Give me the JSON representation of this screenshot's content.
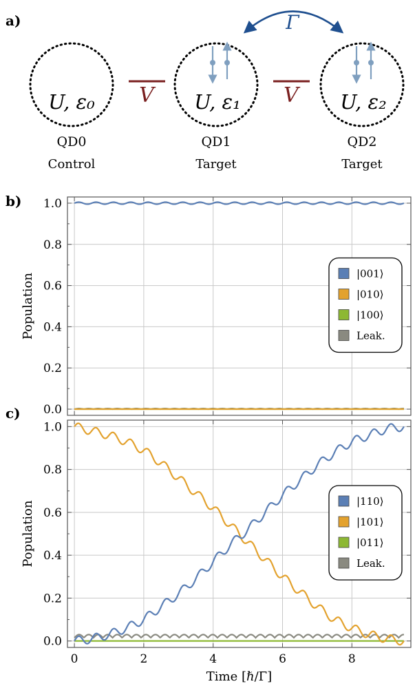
{
  "diagram": {
    "panel_label": "a)",
    "dots": [
      {
        "name": "QD0",
        "role": "Control",
        "params": "U, ε₀",
        "spins": false
      },
      {
        "name": "QD1",
        "role": "Target",
        "params": "U, ε₁",
        "spins": true
      },
      {
        "name": "QD2",
        "role": "Target",
        "params": "U, ε₂",
        "spins": true
      }
    ],
    "coupling_label": "V",
    "tunneling_label": "Γ",
    "coupling_color": "#7a1f1f",
    "tunneling_color": "#1f4f8f",
    "spin_color": "#7f9fbf"
  },
  "colors": {
    "blue": "#5b7fb5",
    "orange": "#e3a22e",
    "green": "#8db833",
    "gray": "#8a8a80"
  },
  "chart_data": [
    {
      "type": "line",
      "panel_label": "b)",
      "xlabel": "",
      "ylabel": "Population",
      "xlim": [
        -0.2,
        9.7
      ],
      "ylim": [
        -0.03,
        1.03
      ],
      "xticks": [
        0,
        2,
        4,
        6,
        8
      ],
      "yticks": [
        "0.0",
        "0.2",
        "0.4",
        "0.6",
        "0.8",
        "1.0"
      ],
      "grid": true,
      "legend_position": "right",
      "series": [
        {
          "name": "|001⟩",
          "color": "#5b7fb5",
          "x": [
            0,
            1,
            2,
            3,
            4,
            5,
            6,
            7,
            8,
            9,
            9.5
          ],
          "y": [
            1.0,
            1.0,
            1.0,
            1.0,
            1.0,
            1.0,
            1.0,
            1.0,
            1.0,
            1.0,
            1.0
          ],
          "ripple": 0.005
        },
        {
          "name": "|010⟩",
          "color": "#e3a22e",
          "x": [
            0,
            9.5
          ],
          "y": [
            0.0,
            0.0
          ],
          "ripple": 0
        },
        {
          "name": "|100⟩",
          "color": "#8db833",
          "x": [
            0,
            9.5
          ],
          "y": [
            0.0,
            0.0
          ],
          "ripple": 0
        },
        {
          "name": "Leak.",
          "color": "#8a8a80",
          "x": [
            0,
            9.5
          ],
          "y": [
            0.0,
            0.0
          ],
          "ripple": 0.003
        }
      ]
    },
    {
      "type": "line",
      "panel_label": "c)",
      "xlabel": "Time [ℏ/Γ]",
      "ylabel": "Population",
      "xlim": [
        -0.2,
        9.7
      ],
      "ylim": [
        -0.03,
        1.03
      ],
      "xticks": [
        0,
        2,
        4,
        6,
        8
      ],
      "yticks": [
        "0.0",
        "0.2",
        "0.4",
        "0.6",
        "0.8",
        "1.0"
      ],
      "grid": true,
      "legend_position": "right",
      "series": [
        {
          "name": "|110⟩",
          "color": "#5b7fb5",
          "x": [
            0,
            0.5,
            1,
            1.5,
            2,
            2.5,
            3,
            3.5,
            4,
            4.5,
            5,
            5.5,
            6,
            6.5,
            7,
            7.5,
            8,
            8.5,
            9,
            9.5
          ],
          "y": [
            0.0,
            0.01,
            0.03,
            0.06,
            0.1,
            0.16,
            0.22,
            0.29,
            0.37,
            0.45,
            0.52,
            0.6,
            0.68,
            0.75,
            0.82,
            0.88,
            0.93,
            0.96,
            0.99,
            1.0
          ],
          "ripple": 0.02
        },
        {
          "name": "|101⟩",
          "color": "#e3a22e",
          "x": [
            0,
            0.5,
            1,
            1.5,
            2,
            2.5,
            3,
            3.5,
            4,
            4.5,
            5,
            5.5,
            6,
            6.5,
            7,
            7.5,
            8,
            8.5,
            9,
            9.5
          ],
          "y": [
            1.0,
            0.98,
            0.96,
            0.93,
            0.89,
            0.83,
            0.76,
            0.69,
            0.62,
            0.54,
            0.46,
            0.38,
            0.3,
            0.23,
            0.16,
            0.1,
            0.06,
            0.03,
            0.01,
            0.0
          ],
          "ripple": 0.02
        },
        {
          "name": "|011⟩",
          "color": "#8db833",
          "x": [
            0,
            9.5
          ],
          "y": [
            0.0,
            0.0
          ],
          "ripple": 0
        },
        {
          "name": "Leak.",
          "color": "#8a8a80",
          "x": [
            0,
            9.5
          ],
          "y": [
            0.015,
            0.015
          ],
          "ripple": 0.015
        }
      ]
    }
  ]
}
